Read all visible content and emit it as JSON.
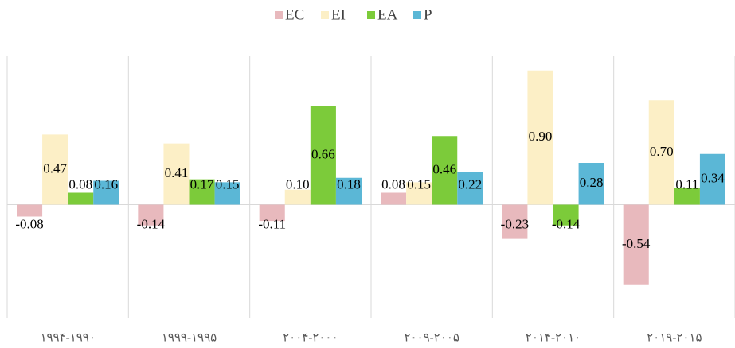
{
  "chart_data": {
    "type": "bar",
    "categories": [
      "۱۹۹۴-۱۹۹۰",
      "۱۹۹۹-۱۹۹۵",
      "۲۰۰۴-۲۰۰۰",
      "۲۰۰۹-۲۰۰۵",
      "۲۰۱۴-۲۰۱۰",
      "۲۰۱۹-۲۰۱۵"
    ],
    "series": [
      {
        "name": "EC",
        "color": "#e8b9bd",
        "values": [
          -0.08,
          -0.14,
          -0.11,
          0.08,
          -0.23,
          -0.54
        ],
        "value_labels": [
          "-0.08",
          "-0.14",
          "-0.11",
          "0.08",
          "-0.23",
          "-0.54"
        ]
      },
      {
        "name": "EI",
        "color": "#fcefc6",
        "values": [
          0.47,
          0.41,
          0.1,
          0.15,
          0.9,
          0.7
        ],
        "value_labels": [
          "0.47",
          "0.41",
          "0.10",
          "0.15",
          "0.90",
          "0.70"
        ]
      },
      {
        "name": "EA",
        "color": "#7ccb3a",
        "values": [
          0.08,
          0.17,
          0.66,
          0.46,
          -0.14,
          0.11
        ],
        "value_labels": [
          "0.08",
          "0.17",
          "0.66",
          "0.46",
          "-0.14",
          "0.11"
        ]
      },
      {
        "name": "P",
        "color": "#5bb7d6",
        "values": [
          0.16,
          0.15,
          0.18,
          0.22,
          0.28,
          0.34
        ],
        "value_labels": [
          "0.16",
          "0.15",
          "0.18",
          "0.22",
          "0.28",
          "0.34"
        ]
      }
    ],
    "ylim": [
      -0.76,
      1.0
    ],
    "legend": "top"
  }
}
